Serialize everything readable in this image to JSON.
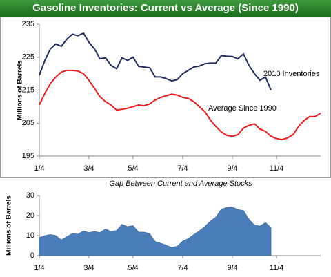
{
  "chart_data": [
    {
      "type": "line",
      "title": "Gasoline Inventories: Current vs Average (Since 1990)",
      "ylabel": "Millions of Barrels",
      "categories": [
        "1/4",
        null,
        null,
        null,
        null,
        null,
        null,
        null,
        null,
        "3/4",
        null,
        null,
        null,
        null,
        null,
        null,
        null,
        "5/4",
        null,
        null,
        null,
        null,
        null,
        null,
        null,
        null,
        "7/4",
        null,
        null,
        null,
        null,
        null,
        null,
        null,
        null,
        "9/4",
        null,
        null,
        null,
        null,
        null,
        null,
        null,
        "11/4",
        null,
        null,
        null,
        null,
        null,
        null,
        null,
        null
      ],
      "series": [
        {
          "name": "2010 Inventories",
          "color": "#1f2a5c",
          "values": [
            219.5,
            224,
            227.5,
            229,
            228.3,
            230.5,
            232,
            231.5,
            232.3,
            229.5,
            227.5,
            224.5,
            224.8,
            222.5,
            221.5,
            224.8,
            224,
            225,
            222.2,
            222,
            221.8,
            219,
            219,
            218.5,
            217.8,
            218.2,
            220,
            221,
            222,
            222.3,
            223,
            223.2,
            223.2,
            225.5,
            225.3,
            225.2,
            224.5,
            226,
            222.5,
            220,
            218,
            219,
            215,
            null,
            null,
            null,
            null,
            null,
            null,
            null,
            null,
            null
          ]
        },
        {
          "name": "Average Since 1990",
          "color": "#ee1c1c",
          "values": [
            210.5,
            214,
            217,
            219,
            220.5,
            221,
            221,
            220.8,
            220,
            218,
            215.5,
            213,
            211.5,
            210.5,
            209,
            209.2,
            209.5,
            210,
            210.5,
            210.3,
            210.8,
            212,
            212.8,
            213.3,
            213.8,
            213.5,
            212.8,
            212.5,
            211.5,
            210,
            208.5,
            206,
            204,
            202.3,
            201.3,
            201,
            201.5,
            203.5,
            204.3,
            204.8,
            203.2,
            202.5,
            201,
            200.3,
            200,
            200.5,
            201.5,
            204,
            205.8,
            207,
            207,
            208
          ]
        }
      ],
      "ylim": [
        195,
        235
      ],
      "yticks": [
        195,
        205,
        215,
        225,
        235
      ]
    },
    {
      "type": "area",
      "title": "Gap Between Current and Average Stocks",
      "ylabel": "Millions of Barrels",
      "color": "#4a7ebb",
      "categories": [
        "1/4",
        null,
        null,
        null,
        null,
        null,
        null,
        null,
        null,
        "3/4",
        null,
        null,
        null,
        null,
        null,
        null,
        null,
        "5/4",
        null,
        null,
        null,
        null,
        null,
        null,
        null,
        null,
        "7/4",
        null,
        null,
        null,
        null,
        null,
        null,
        null,
        null,
        "9/4",
        null,
        null,
        null,
        null,
        null,
        null,
        null,
        "11/4",
        null,
        null,
        null,
        null,
        null,
        null,
        null,
        null
      ],
      "values": [
        9,
        10,
        10.5,
        10,
        7.8,
        9.5,
        11,
        10.7,
        12.3,
        11.5,
        12,
        11.5,
        13.3,
        12,
        12.5,
        15.6,
        14.5,
        15,
        11.7,
        11.7,
        11,
        7,
        6.2,
        5.2,
        4,
        4.7,
        7.2,
        8.5,
        10.5,
        12.3,
        14.5,
        17.2,
        19.2,
        23.2,
        24,
        24.2,
        23,
        22.5,
        18.2,
        15.2,
        14.8,
        16.5,
        14,
        null,
        null,
        null,
        null,
        null,
        null,
        null,
        null,
        null
      ],
      "ylim": [
        0,
        30
      ],
      "yticks": [
        0,
        10,
        20,
        30
      ]
    }
  ]
}
